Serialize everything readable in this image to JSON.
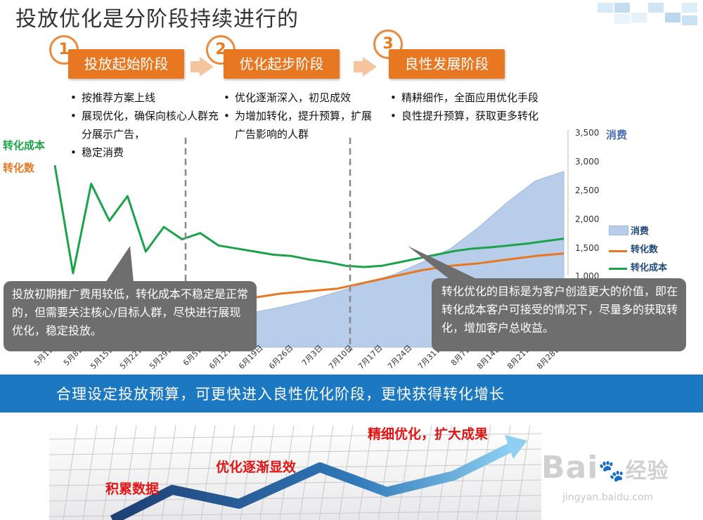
{
  "title": "投放优化是分阶段持续进行的",
  "stages": [
    {
      "num": "1",
      "label": "投放起始阶段",
      "bullets": [
        "按推荐方案上线",
        "展现优化，确保向核心人群充分展示广告，",
        "稳定消费"
      ]
    },
    {
      "num": "2",
      "label": "优化起步阶段",
      "bullets": [
        "优化逐渐深入，初见成效",
        "为增加转化，提升预算，扩展广告影响的人群"
      ]
    },
    {
      "num": "3",
      "label": "良性发展阶段",
      "bullets": [
        "精耕细作，全面应用优化手段",
        "良性提升预算，获取更多转化"
      ]
    }
  ],
  "chart_data": {
    "type": "line",
    "left_axis_labels": [
      "转化成本",
      "转化数"
    ],
    "right_axis_label": "消费",
    "right_ticks": [
      "3,500",
      "3,000",
      "2,500",
      "2,000",
      "1,500",
      "1,000"
    ],
    "right_ylim": [
      1000,
      3500
    ],
    "x_ticks": [
      "5月1日",
      "5月8日",
      "5月15日",
      "5月22日",
      "5月29日",
      "6月5日",
      "6月12日",
      "6月19日",
      "6月26日",
      "7月3日",
      "7月10日",
      "7月17日",
      "7月24日",
      "7月31日",
      "8月7日",
      "8月14日",
      "8月21日",
      "8月28日"
    ],
    "series": [
      {
        "name": "消费",
        "kind": "area",
        "color": "#b8cde9",
        "values": [
          340,
          360,
          380,
          400,
          420,
          450,
          500,
          560,
          650,
          760,
          900,
          1040,
          1180,
          1380,
          1600,
          1950,
          2350,
          2700,
          2850
        ]
      },
      {
        "name": "转化数",
        "kind": "line",
        "color": "#e87722",
        "values": [
          500,
          520,
          540,
          560,
          600,
          650,
          700,
          800,
          870,
          910,
          950,
          1050,
          1150,
          1250,
          1320,
          1360,
          1420,
          1480,
          1520
        ]
      },
      {
        "name": "转化成本",
        "kind": "line",
        "color": "#1aa34a",
        "values": [
          2950,
          1200,
          2650,
          2050,
          2450,
          1550,
          1950,
          1750,
          1850,
          1650,
          1600,
          1550,
          1500,
          1480,
          1420,
          1380,
          1320,
          1300,
          1320,
          1380,
          1440,
          1500,
          1560,
          1600,
          1620,
          1650,
          1680,
          1720,
          1760
        ]
      }
    ],
    "legend_position": "right"
  },
  "callouts": [
    "投放初期推广费用较低，转化成本不稳定是正常的，但需要关注核心/目标人群，尽快进行展现优化，稳定投放。",
    "转化优化的目标是为客户创造更大的价值，即在转化成本客户可接受的情况下，尽量多的获取转化，增加客户总收益。"
  ],
  "banner": "合理设定投放预算，可更快进入良性优化阶段，更快获得转化增长",
  "phases": [
    "积累数据",
    "优化逐渐显效",
    "精细优化，扩大成果"
  ],
  "watermark": {
    "brand": "Bai",
    "brand2": "经验",
    "url": "jingyan.baidu.com"
  },
  "colors": {
    "accent": "#e87722",
    "banner": "#1c78c0",
    "callout": "#6e6e6e"
  }
}
